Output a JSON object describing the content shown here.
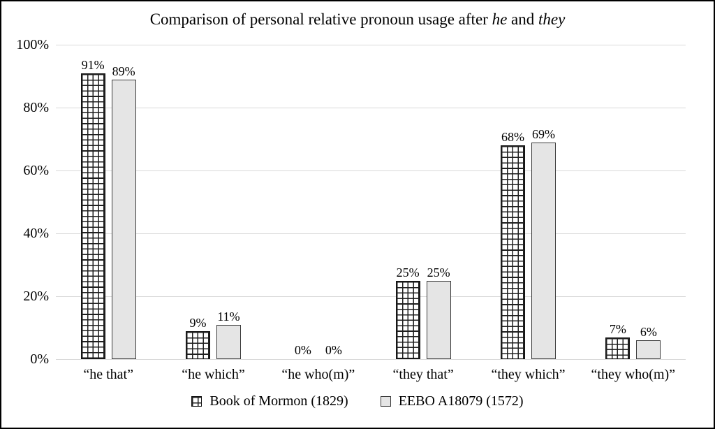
{
  "chart_data": {
    "type": "bar",
    "title": "Comparison of personal relative pronoun usage after he and they",
    "title_parts": [
      {
        "text": "Comparison of personal relative pronoun usage after ",
        "italic": false
      },
      {
        "text": "he",
        "italic": true
      },
      {
        "text": " and ",
        "italic": false
      },
      {
        "text": "they",
        "italic": true
      }
    ],
    "categories": [
      "“he that”",
      "“he which”",
      "“he who(m)”",
      "“they that”",
      "“they which”",
      "“they who(m)”"
    ],
    "series": [
      {
        "name": "Book of Mormon (1829)",
        "pattern": "crosshatch",
        "values": [
          91,
          9,
          0,
          25,
          68,
          7
        ]
      },
      {
        "name": "EEBO A18079 (1572)",
        "pattern": "solid",
        "values": [
          89,
          11,
          0,
          25,
          69,
          6
        ]
      }
    ],
    "value_label_format": "{v}%",
    "xlabel": "",
    "ylabel": "",
    "ylim": [
      0,
      100
    ],
    "ytick_values": [
      0,
      20,
      40,
      60,
      80,
      100
    ],
    "ytick_labels": [
      "0%",
      "20%",
      "40%",
      "60%",
      "80%",
      "100%"
    ],
    "grid": true,
    "legend_position": "bottom",
    "colors": {
      "solid_fill": "#e5e5e5",
      "bar_border": "#3a3a3a",
      "hatch_line": "#1f1f1f",
      "gridline": "#d9d9d9",
      "text": "#000000",
      "frame_border": "#000000",
      "background": "#ffffff"
    }
  }
}
